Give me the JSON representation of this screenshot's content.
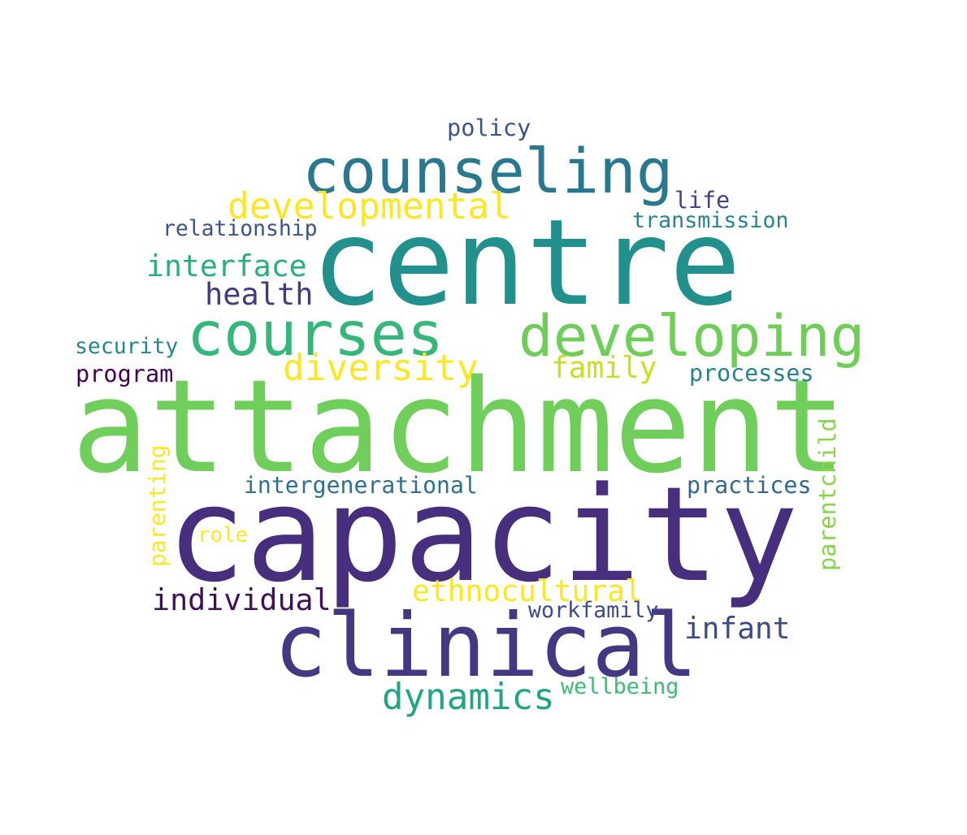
{
  "words": [
    {
      "text": "attachment",
      "color": "#6fcf5a"
    },
    {
      "text": "capacity",
      "color": "#472f7d"
    },
    {
      "text": "centre",
      "color": "#22908c"
    },
    {
      "text": "clinical",
      "color": "#453882"
    },
    {
      "text": "counseling",
      "color": "#2a788e"
    },
    {
      "text": "developing",
      "color": "#6ece58"
    },
    {
      "text": "courses",
      "color": "#35b779"
    },
    {
      "text": "developmental",
      "color": "#fde725"
    },
    {
      "text": "diversity",
      "color": "#fde725"
    },
    {
      "text": "dynamics",
      "color": "#21a585"
    },
    {
      "text": "ethnocultural",
      "color": "#fde725"
    },
    {
      "text": "interface",
      "color": "#29af7f"
    },
    {
      "text": "health",
      "color": "#443a83"
    },
    {
      "text": "family",
      "color": "#c8e020"
    },
    {
      "text": "individual",
      "color": "#440f5a"
    },
    {
      "text": "infant",
      "color": "#3e4989"
    },
    {
      "text": "intergenerational",
      "color": "#2c728e"
    },
    {
      "text": "processes",
      "color": "#26828e"
    },
    {
      "text": "practices",
      "color": "#31688e"
    },
    {
      "text": "parentchild",
      "color": "#86d549"
    },
    {
      "text": "parenting",
      "color": "#fde725"
    },
    {
      "text": "security",
      "color": "#25858e"
    },
    {
      "text": "program",
      "color": "#440154"
    },
    {
      "text": "relationship",
      "color": "#3b528b"
    },
    {
      "text": "transmission",
      "color": "#25848e"
    },
    {
      "text": "life",
      "color": "#414487"
    },
    {
      "text": "policy",
      "color": "#3b528b"
    },
    {
      "text": "workfamily",
      "color": "#3e4989"
    },
    {
      "text": "wellbeing",
      "color": "#3bbb75"
    },
    {
      "text": "role",
      "color": "#fde725"
    }
  ]
}
